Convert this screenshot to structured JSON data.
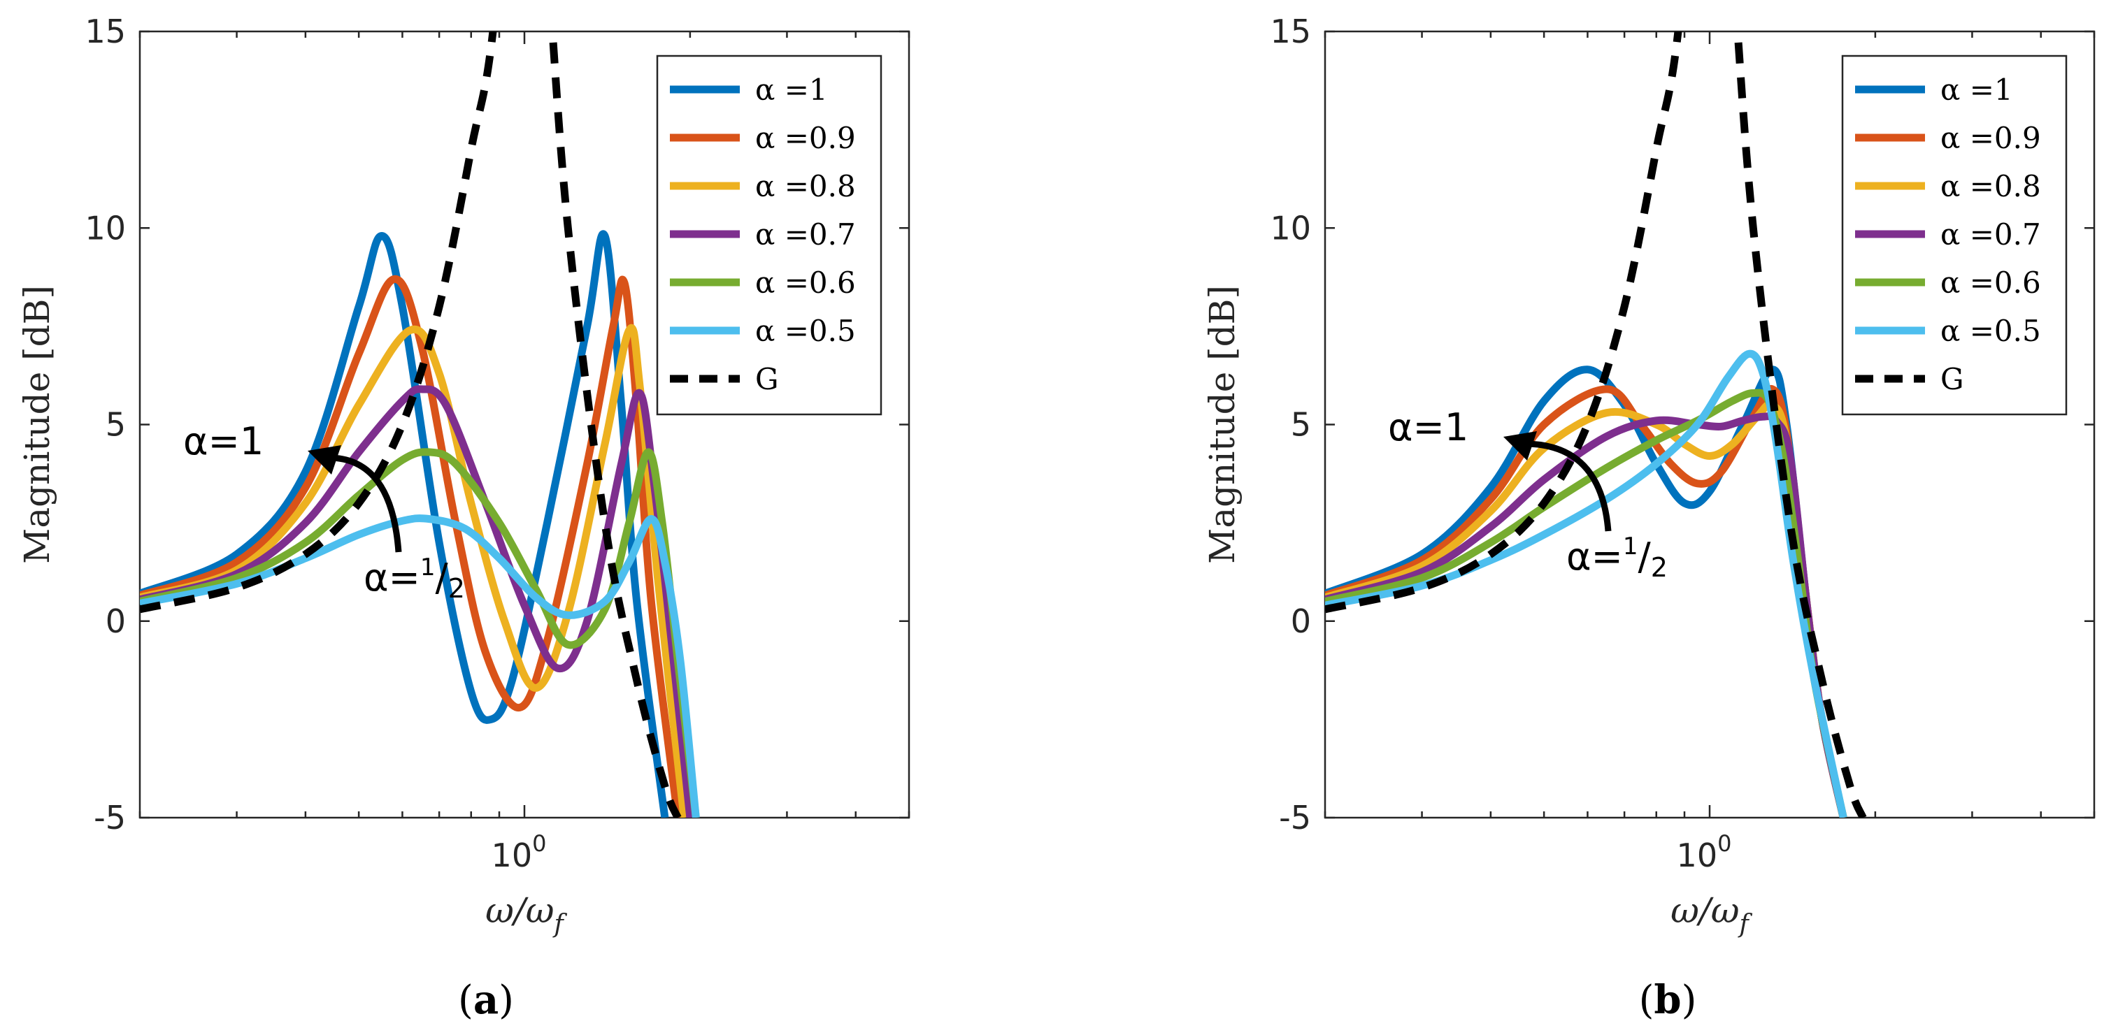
{
  "figure": {
    "sublabels": [
      "(a)",
      "(b)"
    ]
  },
  "chart_data": [
    {
      "type": "line",
      "panel": "(a)",
      "xlabel": "ω/ω_f",
      "ylabel": "Magnitude [dB]",
      "xscale": "log",
      "xlim": [
        0.2,
        5
      ],
      "ylim": [
        -5,
        15
      ],
      "yticks": [
        -5,
        0,
        5,
        10,
        15
      ],
      "ytick_labels": [
        "-5",
        "0",
        "5",
        "10",
        "15"
      ],
      "xtick_labels": [
        "10^0"
      ],
      "grid": false,
      "legend_position": "top-right",
      "annotations": {
        "upper": "α=1",
        "lower_main": "α=",
        "lower_num": "1",
        "lower_slash": "/",
        "lower_den": "2"
      },
      "series": [
        {
          "name": "α =1",
          "color": "#0072BD",
          "dash": false,
          "points": [
            [
              0.2,
              0.7
            ],
            [
              0.3,
              1.7
            ],
            [
              0.4,
              3.8
            ],
            [
              0.5,
              8.0
            ],
            [
              0.55,
              9.8
            ],
            [
              0.6,
              8.0
            ],
            [
              0.7,
              2.0
            ],
            [
              0.8,
              -1.8
            ],
            [
              0.87,
              -2.5
            ],
            [
              0.95,
              -1.5
            ],
            [
              1.1,
              2.5
            ],
            [
              1.3,
              7.5
            ],
            [
              1.4,
              9.8
            ],
            [
              1.5,
              5.5
            ],
            [
              1.6,
              0.5
            ],
            [
              1.8,
              -5.0
            ]
          ]
        },
        {
          "name": "α =0.9",
          "color": "#D95319",
          "dash": false,
          "points": [
            [
              0.2,
              0.65
            ],
            [
              0.3,
              1.5
            ],
            [
              0.4,
              3.4
            ],
            [
              0.5,
              6.8
            ],
            [
              0.58,
              8.7
            ],
            [
              0.65,
              7.0
            ],
            [
              0.75,
              2.5
            ],
            [
              0.85,
              -0.8
            ],
            [
              0.98,
              -2.2
            ],
            [
              1.1,
              -0.5
            ],
            [
              1.3,
              4.0
            ],
            [
              1.45,
              7.5
            ],
            [
              1.52,
              8.6
            ],
            [
              1.6,
              5.5
            ],
            [
              1.7,
              0.5
            ],
            [
              1.9,
              -5.0
            ]
          ]
        },
        {
          "name": "α =0.8",
          "color": "#EDB120",
          "dash": false,
          "points": [
            [
              0.2,
              0.6
            ],
            [
              0.3,
              1.3
            ],
            [
              0.4,
              3.0
            ],
            [
              0.5,
              5.5
            ],
            [
              0.62,
              7.4
            ],
            [
              0.7,
              6.3
            ],
            [
              0.8,
              3.0
            ],
            [
              0.92,
              0.0
            ],
            [
              1.05,
              -1.7
            ],
            [
              1.2,
              0.2
            ],
            [
              1.4,
              4.5
            ],
            [
              1.55,
              7.4
            ],
            [
              1.62,
              6.0
            ],
            [
              1.75,
              1.0
            ],
            [
              1.95,
              -5.0
            ]
          ]
        },
        {
          "name": "α =0.7",
          "color": "#7E2F8E",
          "dash": false,
          "points": [
            [
              0.2,
              0.55
            ],
            [
              0.3,
              1.2
            ],
            [
              0.4,
              2.5
            ],
            [
              0.5,
              4.3
            ],
            [
              0.6,
              5.6
            ],
            [
              0.65,
              5.9
            ],
            [
              0.72,
              5.5
            ],
            [
              0.85,
              3.0
            ],
            [
              1.0,
              0.4
            ],
            [
              1.15,
              -1.2
            ],
            [
              1.3,
              0.0
            ],
            [
              1.5,
              4.0
            ],
            [
              1.62,
              5.8
            ],
            [
              1.72,
              3.5
            ],
            [
              1.85,
              -0.5
            ],
            [
              2.0,
              -5.0
            ]
          ]
        },
        {
          "name": "α =0.6",
          "color": "#77AC30",
          "dash": false,
          "points": [
            [
              0.2,
              0.5
            ],
            [
              0.3,
              1.1
            ],
            [
              0.4,
              2.0
            ],
            [
              0.5,
              3.2
            ],
            [
              0.6,
              4.1
            ],
            [
              0.67,
              4.3
            ],
            [
              0.75,
              4.0
            ],
            [
              0.9,
              2.5
            ],
            [
              1.05,
              0.8
            ],
            [
              1.2,
              -0.6
            ],
            [
              1.4,
              0.3
            ],
            [
              1.55,
              2.5
            ],
            [
              1.68,
              4.3
            ],
            [
              1.78,
              2.5
            ],
            [
              1.9,
              -1.0
            ],
            [
              2.05,
              -5.0
            ]
          ]
        },
        {
          "name": "α =0.5",
          "color": "#4DBEEE",
          "dash": false,
          "points": [
            [
              0.2,
              0.45
            ],
            [
              0.3,
              0.95
            ],
            [
              0.4,
              1.6
            ],
            [
              0.5,
              2.2
            ],
            [
              0.6,
              2.55
            ],
            [
              0.67,
              2.6
            ],
            [
              0.78,
              2.35
            ],
            [
              0.9,
              1.6
            ],
            [
              1.05,
              0.6
            ],
            [
              1.2,
              0.15
            ],
            [
              1.4,
              0.5
            ],
            [
              1.55,
              1.5
            ],
            [
              1.7,
              2.6
            ],
            [
              1.8,
              1.5
            ],
            [
              1.92,
              -1.0
            ],
            [
              2.05,
              -5.0
            ]
          ]
        },
        {
          "name": "G",
          "color": "#000000",
          "dash": true,
          "points": [
            [
              0.2,
              0.3
            ],
            [
              0.3,
              0.85
            ],
            [
              0.4,
              1.7
            ],
            [
              0.5,
              3.0
            ],
            [
              0.6,
              5.0
            ],
            [
              0.7,
              8.0
            ],
            [
              0.8,
              12.0
            ],
            [
              0.88,
              15.2
            ],
            [
              1.0,
              24.0
            ],
            [
              1.1,
              16.8
            ],
            [
              1.2,
              10.0
            ],
            [
              1.4,
              2.5
            ],
            [
              1.6,
              -1.5
            ],
            [
              1.8,
              -4.2
            ],
            [
              1.9,
              -5.0
            ]
          ]
        }
      ]
    },
    {
      "type": "line",
      "panel": "(b)",
      "xlabel": "ω/ω_f",
      "ylabel": "Magnitude [dB]",
      "xscale": "log",
      "xlim": [
        0.2,
        5
      ],
      "ylim": [
        -5,
        15
      ],
      "yticks": [
        -5,
        0,
        5,
        10,
        15
      ],
      "ytick_labels": [
        "-5",
        "0",
        "5",
        "10",
        "15"
      ],
      "xtick_labels": [
        "10^0"
      ],
      "grid": false,
      "legend_position": "top-right",
      "annotations": {
        "upper": "α=1",
        "lower_main": "α=",
        "lower_num": "1",
        "lower_slash": "/",
        "lower_den": "2"
      },
      "series": [
        {
          "name": "α =1",
          "color": "#0072BD",
          "dash": false,
          "points": [
            [
              0.2,
              0.7
            ],
            [
              0.3,
              1.7
            ],
            [
              0.4,
              3.4
            ],
            [
              0.5,
              5.6
            ],
            [
              0.6,
              6.4
            ],
            [
              0.7,
              5.5
            ],
            [
              0.8,
              4.0
            ],
            [
              0.9,
              3.0
            ],
            [
              1.0,
              3.3
            ],
            [
              1.15,
              5.0
            ],
            [
              1.3,
              6.4
            ],
            [
              1.38,
              5.0
            ],
            [
              1.5,
              0.5
            ],
            [
              1.6,
              -2.5
            ],
            [
              1.75,
              -5.0
            ]
          ]
        },
        {
          "name": "α =0.9",
          "color": "#D95319",
          "dash": false,
          "points": [
            [
              0.2,
              0.65
            ],
            [
              0.3,
              1.55
            ],
            [
              0.4,
              3.1
            ],
            [
              0.5,
              5.0
            ],
            [
              0.65,
              5.9
            ],
            [
              0.75,
              5.0
            ],
            [
              0.85,
              4.0
            ],
            [
              0.95,
              3.5
            ],
            [
              1.05,
              3.8
            ],
            [
              1.2,
              5.2
            ],
            [
              1.3,
              5.9
            ],
            [
              1.38,
              4.8
            ],
            [
              1.5,
              0.5
            ],
            [
              1.6,
              -2.5
            ],
            [
              1.75,
              -5.0
            ]
          ]
        },
        {
          "name": "α =0.8",
          "color": "#EDB120",
          "dash": false,
          "points": [
            [
              0.2,
              0.6
            ],
            [
              0.3,
              1.4
            ],
            [
              0.4,
              2.8
            ],
            [
              0.5,
              4.4
            ],
            [
              0.65,
              5.3
            ],
            [
              0.8,
              5.0
            ],
            [
              0.9,
              4.5
            ],
            [
              1.0,
              4.2
            ],
            [
              1.1,
              4.5
            ],
            [
              1.22,
              5.2
            ],
            [
              1.3,
              5.5
            ],
            [
              1.38,
              4.6
            ],
            [
              1.5,
              0.5
            ],
            [
              1.6,
              -2.5
            ],
            [
              1.75,
              -5.0
            ]
          ]
        },
        {
          "name": "α =0.7",
          "color": "#7E2F8E",
          "dash": false,
          "points": [
            [
              0.2,
              0.55
            ],
            [
              0.3,
              1.25
            ],
            [
              0.4,
              2.4
            ],
            [
              0.5,
              3.6
            ],
            [
              0.65,
              4.7
            ],
            [
              0.8,
              5.1
            ],
            [
              0.95,
              5.0
            ],
            [
              1.05,
              4.95
            ],
            [
              1.15,
              5.1
            ],
            [
              1.25,
              5.2
            ],
            [
              1.32,
              5.1
            ],
            [
              1.4,
              4.2
            ],
            [
              1.5,
              0.5
            ],
            [
              1.6,
              -2.5
            ],
            [
              1.75,
              -5.0
            ]
          ]
        },
        {
          "name": "α =0.6",
          "color": "#77AC30",
          "dash": false,
          "points": [
            [
              0.2,
              0.5
            ],
            [
              0.3,
              1.1
            ],
            [
              0.4,
              2.0
            ],
            [
              0.5,
              2.9
            ],
            [
              0.65,
              3.9
            ],
            [
              0.8,
              4.6
            ],
            [
              0.95,
              5.1
            ],
            [
              1.1,
              5.6
            ],
            [
              1.2,
              5.8
            ],
            [
              1.28,
              5.6
            ],
            [
              1.36,
              4.2
            ],
            [
              1.45,
              1.5
            ],
            [
              1.55,
              -1.5
            ],
            [
              1.75,
              -5.0
            ]
          ]
        },
        {
          "name": "α =0.5",
          "color": "#4DBEEE",
          "dash": false,
          "points": [
            [
              0.2,
              0.4
            ],
            [
              0.3,
              0.9
            ],
            [
              0.4,
              1.55
            ],
            [
              0.5,
              2.2
            ],
            [
              0.65,
              3.1
            ],
            [
              0.8,
              4.0
            ],
            [
              0.95,
              5.0
            ],
            [
              1.08,
              6.2
            ],
            [
              1.18,
              6.8
            ],
            [
              1.25,
              6.3
            ],
            [
              1.32,
              4.6
            ],
            [
              1.42,
              1.5
            ],
            [
              1.55,
              -1.5
            ],
            [
              1.75,
              -5.0
            ]
          ]
        },
        {
          "name": "G",
          "color": "#000000",
          "dash": true,
          "points": [
            [
              0.2,
              0.3
            ],
            [
              0.3,
              0.85
            ],
            [
              0.4,
              1.7
            ],
            [
              0.5,
              3.0
            ],
            [
              0.6,
              5.0
            ],
            [
              0.7,
              8.0
            ],
            [
              0.8,
              12.0
            ],
            [
              0.88,
              15.2
            ],
            [
              1.0,
              24.0
            ],
            [
              1.1,
              16.8
            ],
            [
              1.2,
              10.0
            ],
            [
              1.4,
              2.5
            ],
            [
              1.6,
              -1.5
            ],
            [
              1.8,
              -4.2
            ],
            [
              1.9,
              -5.0
            ]
          ]
        }
      ]
    }
  ]
}
